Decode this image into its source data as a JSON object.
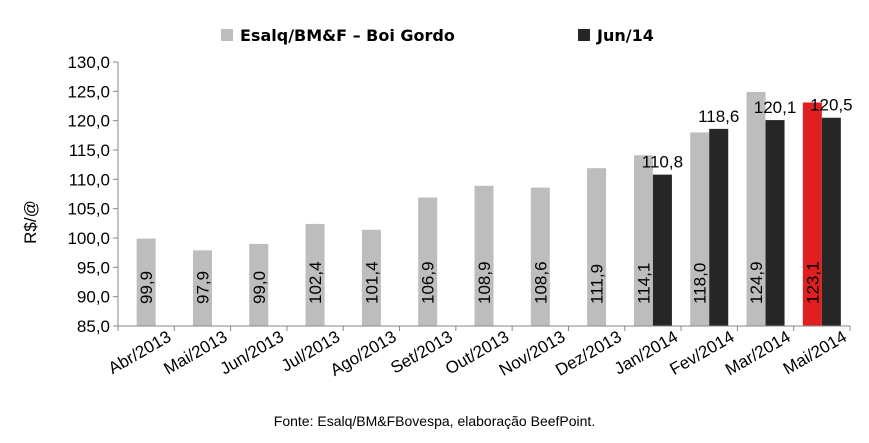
{
  "chart_data": {
    "type": "bar",
    "categories": [
      "Abr/2013",
      "Mai/2013",
      "Jun/2013",
      "Jul/2013",
      "Ago/2013",
      "Set/2013",
      "Out/2013",
      "Nov/2013",
      "Dez/2013",
      "Jan/2014",
      "Fev/2014",
      "Mar/2014",
      "Mai/2014"
    ],
    "series": [
      {
        "name": "Esalq/BM&F – Boi Gordo",
        "color": "#bdbdbd",
        "highlight_color": "#e02020",
        "highlight_index": 12,
        "values": [
          99.9,
          97.9,
          99.0,
          102.4,
          101.4,
          106.9,
          108.9,
          108.6,
          111.9,
          114.1,
          118.0,
          124.9,
          123.1
        ],
        "labels": [
          "99,9",
          "97,9",
          "99,0",
          "102,4",
          "101,4",
          "106,9",
          "108,9",
          "108,6",
          "111,9",
          "114,1",
          "118,0",
          "124,9",
          "123,1"
        ]
      },
      {
        "name": "Jun/14",
        "color": "#262626",
        "values": [
          null,
          null,
          null,
          null,
          null,
          null,
          null,
          null,
          null,
          110.8,
          118.6,
          120.1,
          120.5
        ],
        "labels": [
          null,
          null,
          null,
          null,
          null,
          null,
          null,
          null,
          null,
          "110,8",
          "118,6",
          "120,1",
          "120,5"
        ]
      }
    ],
    "ylabel": "R$/@",
    "ylim": [
      85,
      130
    ],
    "yticks": [
      "85,0",
      "90,0",
      "95,0",
      "100,0",
      "105,0",
      "110,0",
      "115,0",
      "120,0",
      "125,0",
      "130,0"
    ],
    "ytick_values": [
      85,
      90,
      95,
      100,
      105,
      110,
      115,
      120,
      125,
      130
    ],
    "grid": false,
    "legend_position": "top"
  },
  "source": "Fonte: Esalq/BM&FBovespa, elaboração BeefPoint."
}
